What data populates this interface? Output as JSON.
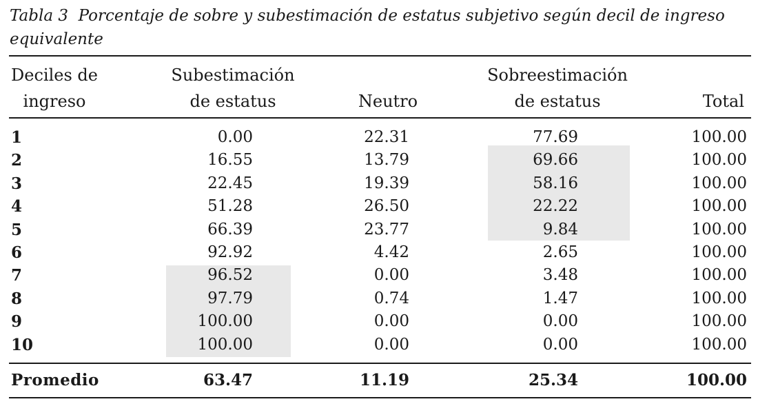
{
  "caption": {
    "label": "Tabla 3",
    "text": "Porcentaje de sobre y subestimación de estatus subjetivo según decil de ingreso equivalente"
  },
  "headers": {
    "decile_line1": "Deciles de",
    "decile_line2": "ingreso",
    "sub_line1": "Subestimación",
    "sub_line2": "de estatus",
    "neutro": "Neutro",
    "sob_line1": "Sobreestimación",
    "sob_line2": "de estatus",
    "total": "Total"
  },
  "rows": [
    {
      "decile": "1",
      "sub": "0.00",
      "neutro": "22.31",
      "sob": "77.69",
      "total": "100.00"
    },
    {
      "decile": "2",
      "sub": "16.55",
      "neutro": "13.79",
      "sob": "69.66",
      "total": "100.00"
    },
    {
      "decile": "3",
      "sub": "22.45",
      "neutro": "19.39",
      "sob": "58.16",
      "total": "100.00"
    },
    {
      "decile": "4",
      "sub": "51.28",
      "neutro": "26.50",
      "sob": "22.22",
      "total": "100.00"
    },
    {
      "decile": "5",
      "sub": "66.39",
      "neutro": "23.77",
      "sob": "9.84",
      "total": "100.00"
    },
    {
      "decile": "6",
      "sub": "92.92",
      "neutro": "4.42",
      "sob": "2.65",
      "total": "100.00"
    },
    {
      "decile": "7",
      "sub": "96.52",
      "neutro": "0.00",
      "sob": "3.48",
      "total": "100.00"
    },
    {
      "decile": "8",
      "sub": "97.79",
      "neutro": "0.74",
      "sob": "1.47",
      "total": "100.00"
    },
    {
      "decile": "9",
      "sub": "100.00",
      "neutro": "0.00",
      "sob": "0.00",
      "total": "100.00"
    },
    {
      "decile": "10",
      "sub": "100.00",
      "neutro": "0.00",
      "sob": "0.00",
      "total": "100.00"
    }
  ],
  "summary": {
    "label": "Promedio",
    "sub": "63.47",
    "neutro": "11.19",
    "sob": "25.34",
    "total": "100.00"
  },
  "highlight_color": "#e8e8e8"
}
